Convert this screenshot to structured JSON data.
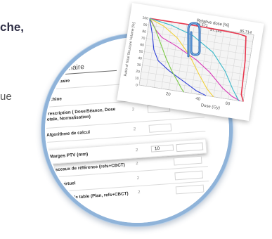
{
  "background_text": {
    "fragment_top": "che,",
    "fragment_mid": "ue"
  },
  "questionnaire": {
    "title": "Questionnaire",
    "header": "Questionnaire",
    "rows": [
      {
        "label": "Machine",
        "num": ""
      },
      {
        "label": "Prescription ( Dose/Séance, Dose totale, Normalisation)",
        "num": "2"
      },
      {
        "label": "Algorithme de calcul",
        "num": "2"
      },
      {
        "label": "Marges PTV (mm)",
        "num": "2",
        "value": "10"
      },
      {
        "label": "Faisceaux de référence (refs+CBCT)",
        "num": "2"
      },
      {
        "label": "Point virtuel",
        "num": "2"
      },
      {
        "label": "Tolérance de table (Plan, refs+CBCT)",
        "num": "2"
      }
    ]
  },
  "chart_data": {
    "type": "line",
    "title": "Relative dose [%]",
    "xlabel": "Dose (Gy)",
    "ylabel": "Ratio of Total Structure Volume [%]",
    "xlim": [
      0,
      70
    ],
    "ylim": [
      0,
      100
    ],
    "x_ticks": [
      "20",
      "40",
      "60"
    ],
    "y_ticks": [
      "100",
      "90",
      "80",
      "70",
      "60",
      "50",
      "40",
      "30",
      "20",
      "10",
      "0"
    ],
    "annotations": [
      "28.571",
      "57.142",
      "85.714"
    ],
    "series": [
      {
        "color": "#e8384f",
        "x": [
          0,
          30,
          50,
          60,
          65,
          67,
          68,
          70
        ],
        "y": [
          100,
          100,
          99,
          98,
          96,
          60,
          10,
          0
        ]
      },
      {
        "color": "#d93ab8",
        "x": [
          0,
          2,
          5,
          10,
          20,
          35,
          45,
          55,
          62,
          68
        ],
        "y": [
          100,
          95,
          85,
          75,
          66,
          50,
          35,
          15,
          5,
          0
        ]
      },
      {
        "color": "#2e3fd6",
        "x": [
          0,
          3,
          6,
          10,
          18,
          25,
          32,
          38,
          45
        ],
        "y": [
          100,
          80,
          55,
          40,
          28,
          20,
          12,
          5,
          0
        ]
      },
      {
        "color": "#7ac943",
        "x": [
          0,
          5,
          10,
          15,
          20,
          25,
          28,
          30
        ],
        "y": [
          100,
          85,
          65,
          45,
          28,
          14,
          5,
          0
        ]
      },
      {
        "color": "#f2d13a",
        "x": [
          0,
          10,
          20,
          30,
          38,
          45,
          50
        ],
        "y": [
          100,
          92,
          78,
          55,
          30,
          10,
          0
        ]
      },
      {
        "color": "#39b8c9",
        "x": [
          0,
          15,
          30,
          45,
          55,
          62,
          67
        ],
        "y": [
          100,
          95,
          85,
          65,
          40,
          15,
          0
        ]
      }
    ]
  }
}
